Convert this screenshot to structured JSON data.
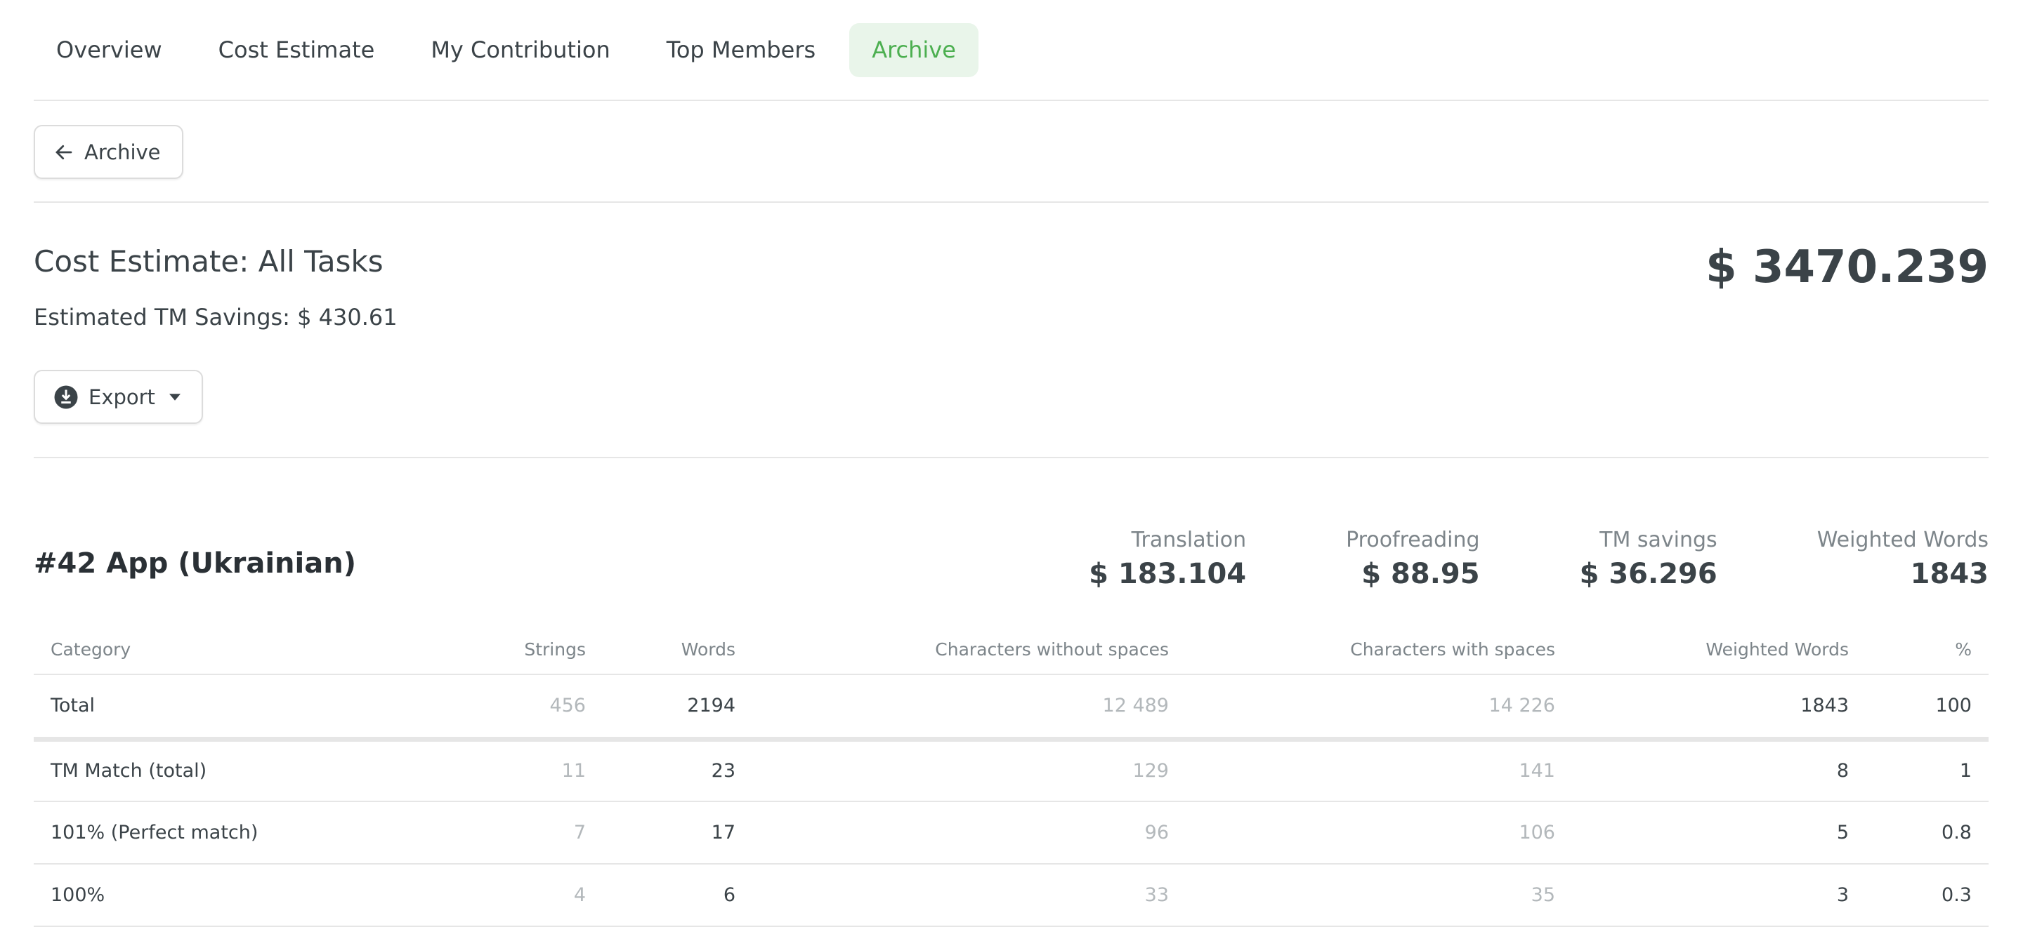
{
  "tabs": [
    {
      "label": "Overview"
    },
    {
      "label": "Cost Estimate"
    },
    {
      "label": "My Contribution"
    },
    {
      "label": "Top Members"
    },
    {
      "label": "Archive",
      "active": true
    }
  ],
  "back_button": {
    "label": "Archive",
    "icon": "arrow-left-icon"
  },
  "header": {
    "title": "Cost Estimate: All Tasks",
    "total": "$ 3470.239",
    "savings": "Estimated TM Savings: $ 430.61"
  },
  "export_button": {
    "label": "Export",
    "icon": "download-circle-icon"
  },
  "project": {
    "title": "#42 App (Ukrainian)",
    "stats": [
      {
        "label": "Translation",
        "value": "$ 183.104"
      },
      {
        "label": "Proofreading",
        "value": "$ 88.95"
      },
      {
        "label": "TM savings",
        "value": "$ 36.296"
      },
      {
        "label": "Weighted Words",
        "value": "1843"
      }
    ],
    "columns": [
      "Category",
      "Strings",
      "Words",
      "Characters without spaces",
      "Characters with spaces",
      "Weighted Words",
      "%"
    ],
    "rows": [
      [
        "Total",
        "456",
        "2194",
        "12 489",
        "14 226",
        "1843",
        "100"
      ],
      [
        "TM Match (total)",
        "11",
        "23",
        "129",
        "141",
        "8",
        "1"
      ],
      [
        "101% (Perfect match)",
        "7",
        "17",
        "96",
        "106",
        "5",
        "0.8"
      ],
      [
        "100%",
        "4",
        "6",
        "33",
        "35",
        "3",
        "0.3"
      ]
    ]
  },
  "colors": {
    "accent": "#4caf50",
    "accent_bg": "#e9f5ea",
    "text": "#3b4348",
    "muted": "#b3b8bb"
  }
}
